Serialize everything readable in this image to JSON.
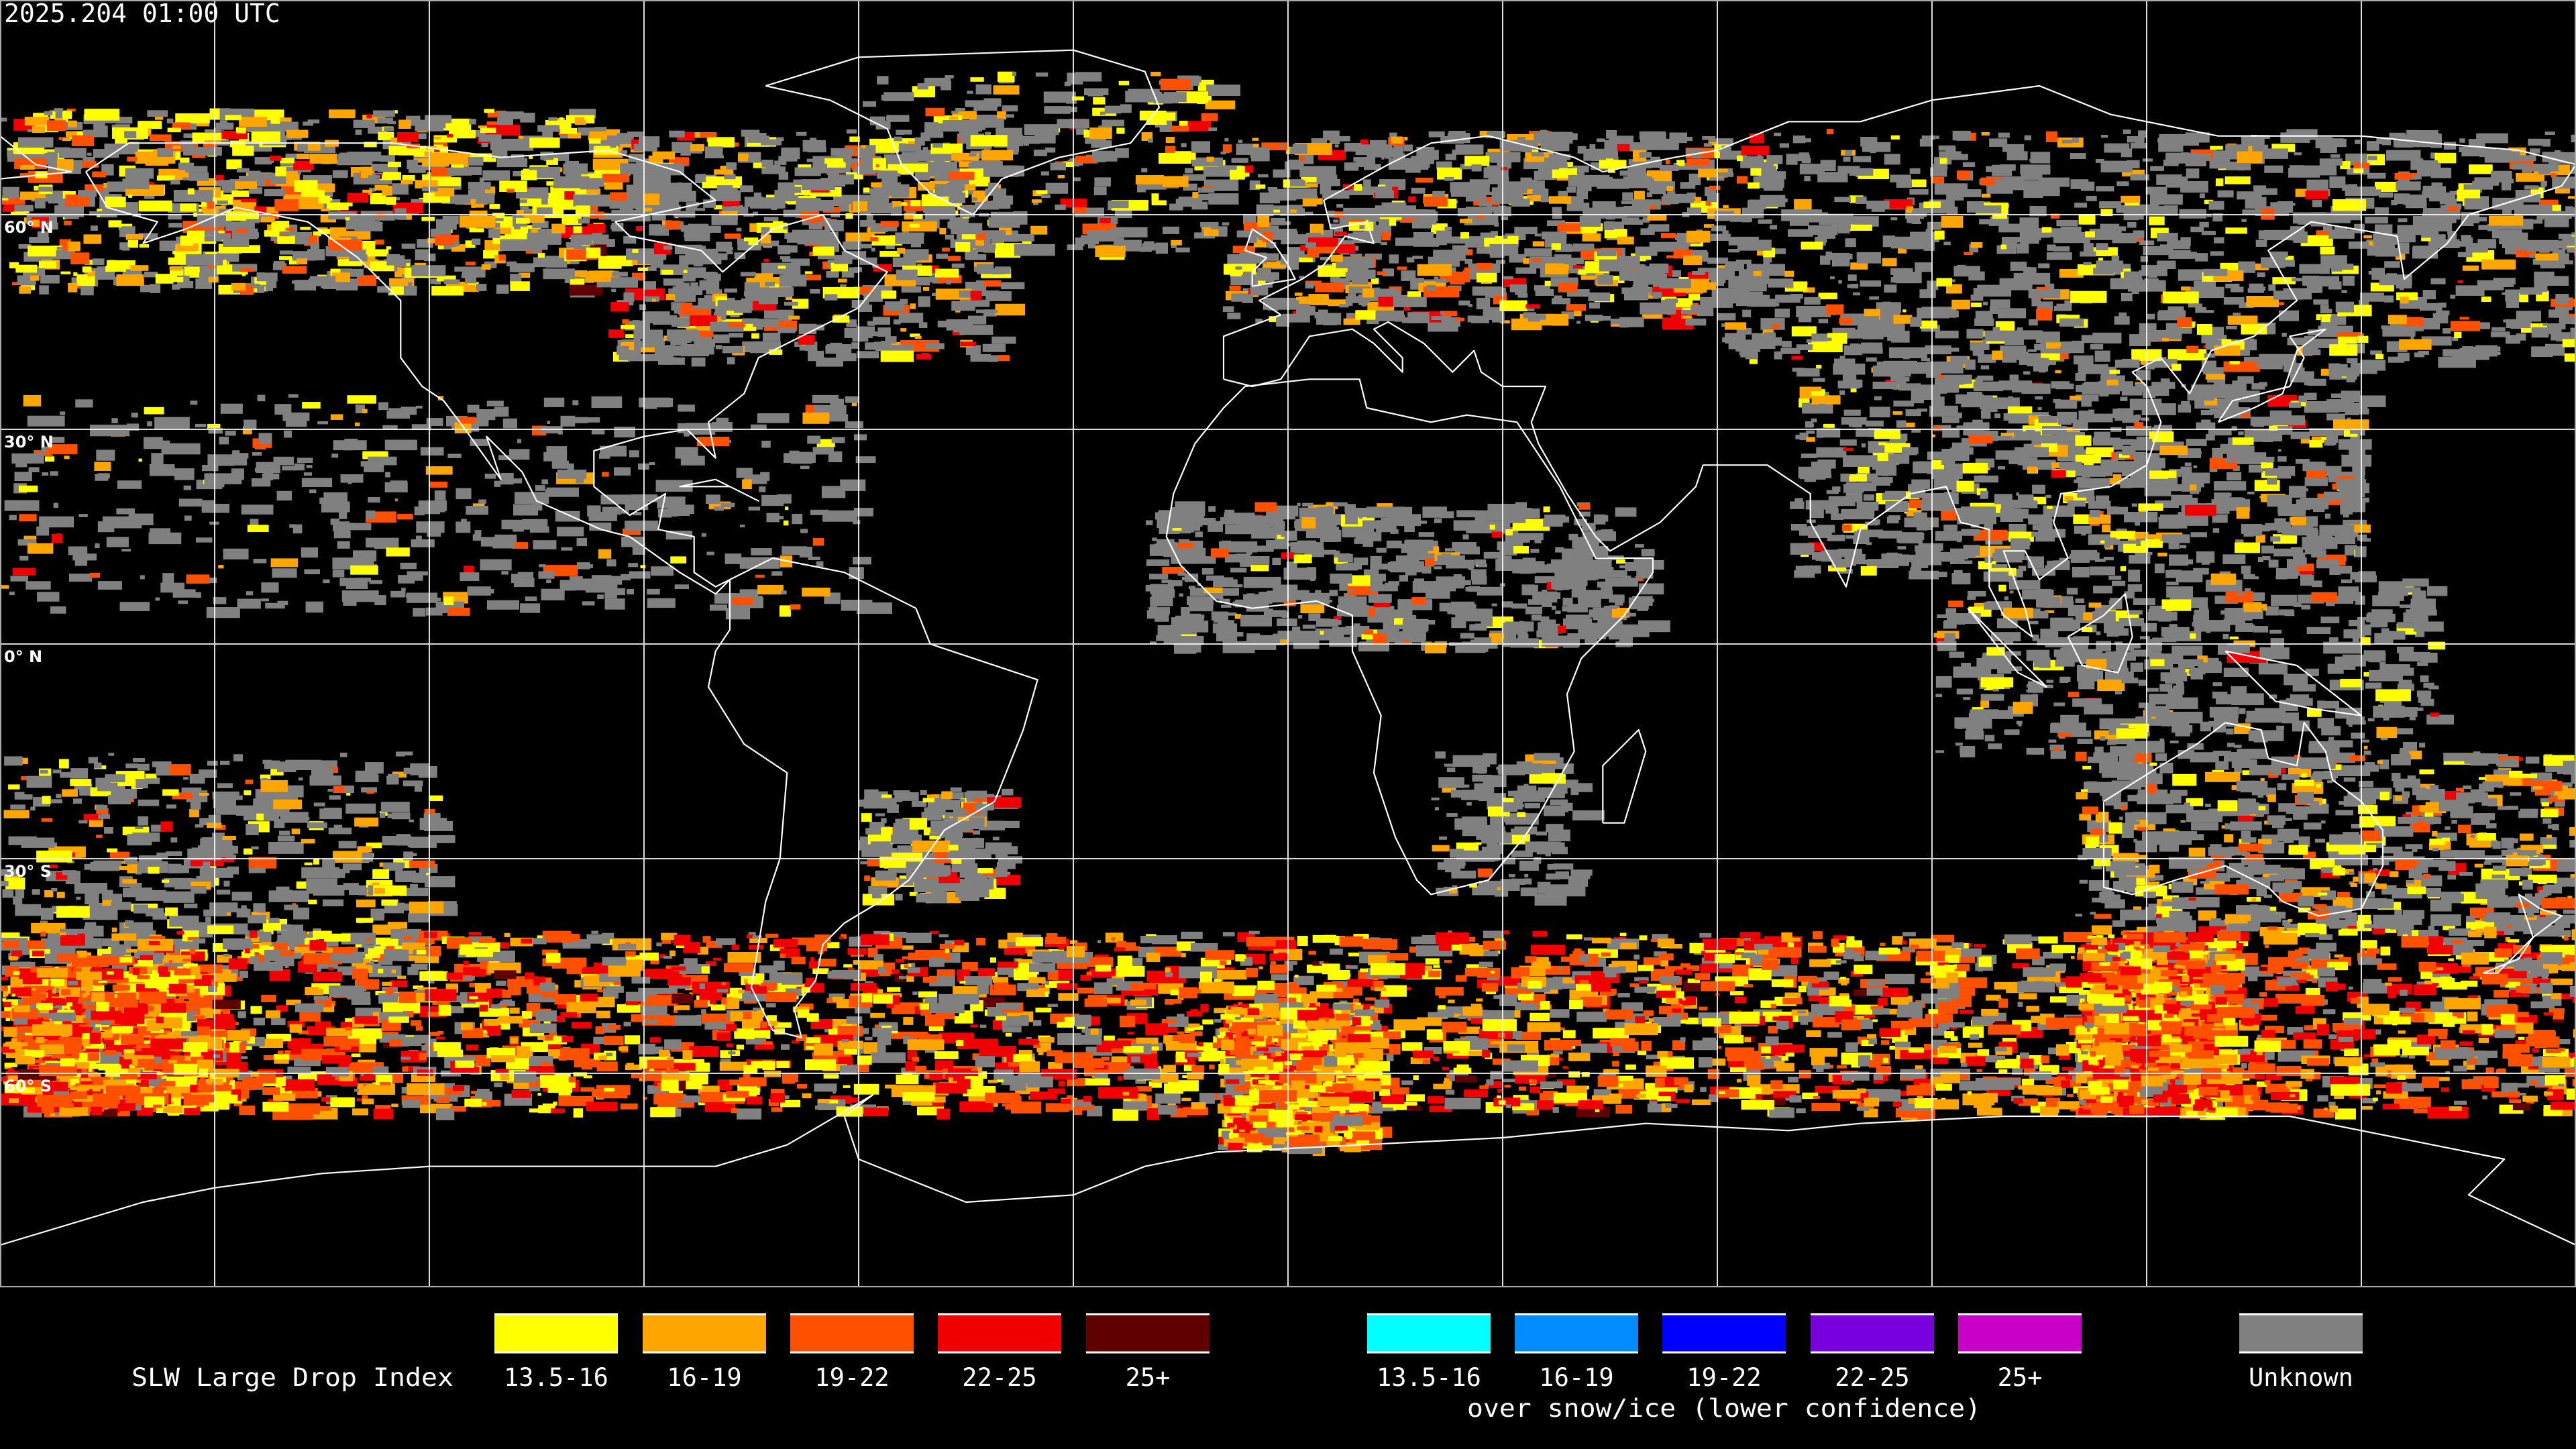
{
  "title": "2025.204 01:00 UTC",
  "map": {
    "projection": "equirectangular",
    "center_longitude": 0,
    "grid_spacing_degrees": 30,
    "latitude_labels": [
      "60° N",
      "30° N",
      "0° N",
      "30° S",
      "60° S"
    ],
    "coastline_color": "#ffffff",
    "grid_color": "#ffffff"
  },
  "legend": {
    "title": "SLW Large Drop Index",
    "primary": [
      {
        "label": "13.5-16",
        "color": "#ffff00"
      },
      {
        "label": "16-19",
        "color": "#ffa500"
      },
      {
        "label": "19-22",
        "color": "#ff5000"
      },
      {
        "label": "22-25",
        "color": "#f00000"
      },
      {
        "label": "25+",
        "color": "#600000"
      }
    ],
    "snow_ice": [
      {
        "label": "13.5-16",
        "color": "#00ffff"
      },
      {
        "label": "16-19",
        "color": "#008cff"
      },
      {
        "label": "19-22",
        "color": "#0000ff"
      },
      {
        "label": "22-25",
        "color": "#7800dc"
      },
      {
        "label": "25+",
        "color": "#c800c8"
      }
    ],
    "snow_ice_caption": "over snow/ice (lower confidence)",
    "unknown": {
      "label": "Unknown",
      "color": "#808080"
    }
  }
}
